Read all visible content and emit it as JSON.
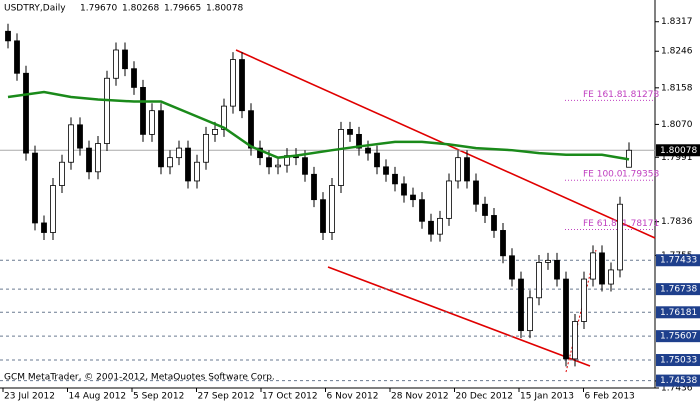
{
  "chart_data": {
    "type": "candlestick",
    "header": {
      "symbol": "USDTRY,Daily",
      "quotes": [
        "1.79670",
        "1.80268",
        "1.79665",
        "1.80078"
      ]
    },
    "footer": "GCM MetaTrader, © 2001-2012, MetaQuotes Software Corp.",
    "x_labels": [
      "23 Jul 2012",
      "14 Aug 2012",
      "5 Sep 2012",
      "27 Sep 2012",
      "17 Oct 2012",
      "6 Nov 2012",
      "28 Nov 2012",
      "20 Dec 2012",
      "15 Jan 2013",
      "6 Feb 2013"
    ],
    "ylim": [
      1.7436,
      1.835
    ],
    "yticks": [
      1.8317,
      1.8246,
      1.8158,
      {
        "value": 1.807,
        "label": "1.8070"
      },
      1.7991,
      1.7836,
      1.7755,
      1.7453,
      1.7436
    ],
    "current_price": 1.80078,
    "levels": [
      1.77433,
      1.76738,
      1.76181,
      1.75607,
      1.75033,
      1.74538
    ],
    "fe_levels": [
      {
        "label": "FE 161.8",
        "value": 1.81278
      },
      {
        "label": "FE 100.0",
        "value": 1.79358
      },
      {
        "label": "FE 61.8",
        "value": 1.78171
      }
    ],
    "open": [
      1.8294,
      1.8271,
      1.8193,
      1.8001,
      1.7833,
      1.781,
      1.7923,
      1.7979,
      1.8069,
      1.8013,
      1.7956,
      1.8024,
      1.8181,
      1.8249,
      1.8204,
      1.8159,
      1.8046,
      1.8103,
      1.7968,
      1.799,
      1.8013,
      1.7934,
      1.7979,
      1.8046,
      1.8058,
      1.8114,
      1.8226,
      1.8103,
      1.8013,
      1.799,
      1.7968,
      1.7972,
      1.7995,
      1.799,
      1.795,
      1.7889,
      1.781,
      1.7923,
      1.8058,
      1.8046,
      1.8013,
      1.8001,
      1.7968,
      1.795,
      1.7927,
      1.79,
      1.7889,
      1.7837,
      1.7806,
      1.7844,
      1.7934,
      1.799,
      1.7934,
      1.7878,
      1.7851,
      1.7815,
      1.7754,
      1.7698,
      1.7574,
      1.7653,
      1.7738,
      1.7743,
      1.7698,
      1.7506,
      1.7596,
      1.7698,
      1.7761,
      1.7686,
      1.772,
      1.7967
    ],
    "high": [
      1.8312,
      1.8289,
      1.8211,
      1.8019,
      1.7851,
      1.7941,
      1.7997,
      1.8087,
      1.8087,
      1.8031,
      1.8042,
      1.8199,
      1.8267,
      1.8267,
      1.8222,
      1.8177,
      1.8121,
      1.8121,
      1.8008,
      1.8031,
      1.8031,
      1.7997,
      1.8064,
      1.8076,
      1.8132,
      1.8244,
      1.8244,
      1.8121,
      1.8031,
      1.8008,
      1.799,
      1.8013,
      1.8013,
      1.8008,
      1.7968,
      1.7907,
      1.7941,
      1.8076,
      1.8076,
      1.8064,
      1.8031,
      1.8019,
      1.7986,
      1.7968,
      1.7945,
      1.7918,
      1.7907,
      1.7855,
      1.7862,
      1.7952,
      1.8008,
      1.8008,
      1.7952,
      1.7896,
      1.7869,
      1.7833,
      1.7772,
      1.7716,
      1.7671,
      1.7756,
      1.7761,
      1.7761,
      1.7716,
      1.7614,
      1.7716,
      1.7779,
      1.7779,
      1.7738,
      1.7896,
      1.80268
    ],
    "low": [
      1.8253,
      1.8175,
      1.7983,
      1.7815,
      1.7792,
      1.7792,
      1.7905,
      1.7961,
      1.7995,
      1.7938,
      1.7938,
      1.8006,
      1.8163,
      1.8186,
      1.8141,
      1.8028,
      1.8028,
      1.795,
      1.795,
      1.7972,
      1.7916,
      1.7916,
      1.7961,
      1.8028,
      1.804,
      1.8096,
      1.8085,
      1.7995,
      1.7972,
      1.795,
      1.795,
      1.7954,
      1.7972,
      1.7932,
      1.7871,
      1.7792,
      1.7792,
      1.7905,
      1.8028,
      1.7995,
      1.7983,
      1.795,
      1.7932,
      1.7909,
      1.7882,
      1.7871,
      1.7819,
      1.7788,
      1.7788,
      1.7826,
      1.7916,
      1.7916,
      1.786,
      1.7833,
      1.7797,
      1.7736,
      1.768,
      1.7556,
      1.7556,
      1.7635,
      1.772,
      1.768,
      1.7488,
      1.7488,
      1.7578,
      1.768,
      1.7668,
      1.7668,
      1.7702,
      1.79665
    ],
    "close": [
      1.8271,
      1.8193,
      1.8001,
      1.7833,
      1.781,
      1.7923,
      1.7979,
      1.8069,
      1.8013,
      1.7956,
      1.8024,
      1.8181,
      1.8249,
      1.8204,
      1.8159,
      1.8046,
      1.8103,
      1.7968,
      1.799,
      1.8013,
      1.7934,
      1.7979,
      1.8046,
      1.8058,
      1.8114,
      1.8226,
      1.8103,
      1.8013,
      1.799,
      1.7968,
      1.7972,
      1.7995,
      1.799,
      1.795,
      1.7889,
      1.781,
      1.7923,
      1.8058,
      1.8046,
      1.8013,
      1.8001,
      1.7968,
      1.795,
      1.7927,
      1.79,
      1.7889,
      1.7837,
      1.7806,
      1.7844,
      1.7934,
      1.799,
      1.7934,
      1.7878,
      1.7851,
      1.7815,
      1.7754,
      1.7698,
      1.7574,
      1.7653,
      1.7738,
      1.7743,
      1.7698,
      1.7506,
      1.7596,
      1.7698,
      1.7761,
      1.7686,
      1.772,
      1.7878,
      1.80078
    ],
    "ma": {
      "color": "#1a8a1a",
      "x": [
        0,
        4,
        7,
        10,
        14,
        17,
        20,
        24,
        27,
        30,
        32,
        36,
        39,
        43,
        46,
        49,
        52,
        56,
        59,
        62,
        66,
        69
      ],
      "values": [
        1.8136,
        1.8148,
        1.8136,
        1.813,
        1.8125,
        1.8125,
        1.8098,
        1.8062,
        1.8017,
        1.799,
        1.7995,
        1.8008,
        1.8017,
        1.8028,
        1.8028,
        1.8022,
        1.8013,
        1.8008,
        1.8001,
        1.7997,
        1.7997,
        1.7986
      ]
    }
  }
}
